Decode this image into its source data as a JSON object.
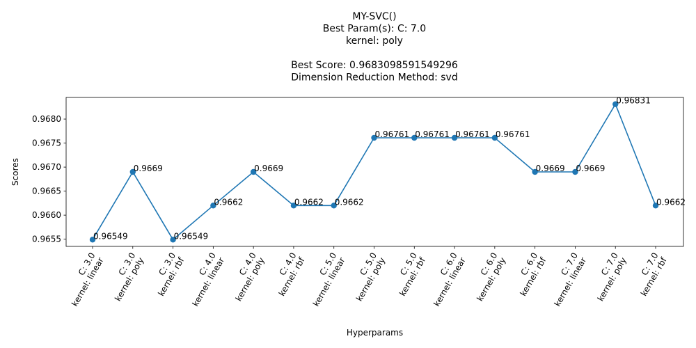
{
  "chart_data": {
    "type": "line",
    "title_lines": [
      "MY-SVC()",
      "Best Param(s): C: 7.0",
      "kernel: poly",
      "",
      "Best Score: 0.9683098591549296",
      "Dimension Reduction Method: svd"
    ],
    "xlabel": "Hyperparams",
    "ylabel": "Scores",
    "categories": [
      [
        "C: 3.0",
        "kernel: linear"
      ],
      [
        "C: 3.0",
        "kernel: poly"
      ],
      [
        "C: 3.0",
        "kernel: rbf"
      ],
      [
        "C: 4.0",
        "kernel: linear"
      ],
      [
        "C: 4.0",
        "kernel: poly"
      ],
      [
        "C: 4.0",
        "kernel: rbf"
      ],
      [
        "C: 5.0",
        "kernel: linear"
      ],
      [
        "C: 5.0",
        "kernel: poly"
      ],
      [
        "C: 5.0",
        "kernel: rbf"
      ],
      [
        "C: 6.0",
        "kernel: linear"
      ],
      [
        "C: 6.0",
        "kernel: poly"
      ],
      [
        "C: 6.0",
        "kernel: rbf"
      ],
      [
        "C: 7.0",
        "kernel: linear"
      ],
      [
        "C: 7.0",
        "kernel: poly"
      ],
      [
        "C: 7.0",
        "kernel: rbf"
      ]
    ],
    "values": [
      0.96549,
      0.9669,
      0.96549,
      0.9662,
      0.9669,
      0.9662,
      0.9662,
      0.96761,
      0.96761,
      0.96761,
      0.96761,
      0.9669,
      0.9669,
      0.96831,
      0.9662
    ],
    "point_labels": [
      "0.96549",
      "0.9669",
      "0.96549",
      "0.9662",
      "0.9669",
      "0.9662",
      "0.9662",
      "0.96761",
      "0.96761",
      "0.96761",
      "0.96761",
      "0.9669",
      "0.9669",
      "0.96831",
      "0.9662"
    ],
    "yticks": [
      0.9655,
      0.966,
      0.9665,
      0.967,
      0.9675,
      0.968
    ],
    "ytick_labels": [
      "0.9655",
      "0.9660",
      "0.9665",
      "0.9670",
      "0.9675",
      "0.9680"
    ],
    "ylim": [
      0.96535,
      0.96845
    ],
    "line_color": "#1f77b4",
    "marker_color": "#1f77b4",
    "grid": false,
    "legend": "none"
  }
}
